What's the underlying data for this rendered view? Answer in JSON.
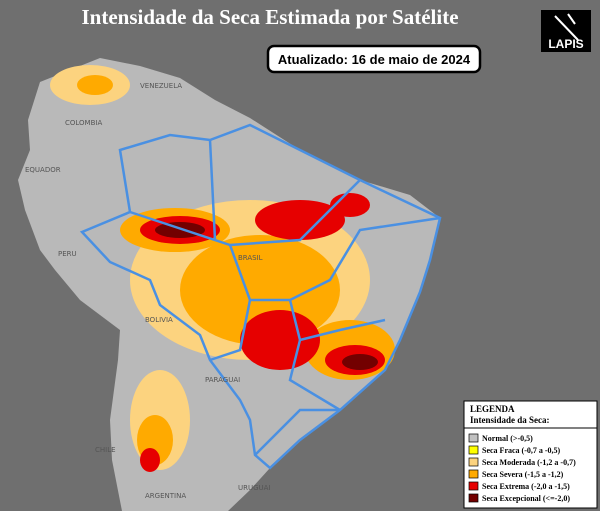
{
  "header": {
    "title": "Intensidade da Seca Estimada por Satélite",
    "updated": "Atualizado: 16 de maio de 2024",
    "logo": "LAPIS"
  },
  "map_labels": [
    "VENEZUELA",
    "COLOMBIA",
    "EQUADOR",
    "PERU",
    "BRASIL",
    "BOLIVIA",
    "CHILE",
    "ARGENTINA",
    "PARAGUAI",
    "URUGUAI"
  ],
  "legend": {
    "title": "LEGENDA",
    "subtitle": "Intensidade da Seca:",
    "items": [
      {
        "label": "Normal (>-0,5)",
        "color": "#c0c0c0"
      },
      {
        "label": "Seca Fraca (-0,7 a -0,5)",
        "color": "#ffff00"
      },
      {
        "label": "Seca Moderada (-1,2 a -0,7)",
        "color": "#fcd37f"
      },
      {
        "label": "Seca Severa (-1,5 a -1,2)",
        "color": "#ffaa00"
      },
      {
        "label": "Seca Extrema (-2,0 a -1,5)",
        "color": "#e60000"
      },
      {
        "label": "Seca Excepcional (<=-2,0)",
        "color": "#730000"
      }
    ]
  }
}
